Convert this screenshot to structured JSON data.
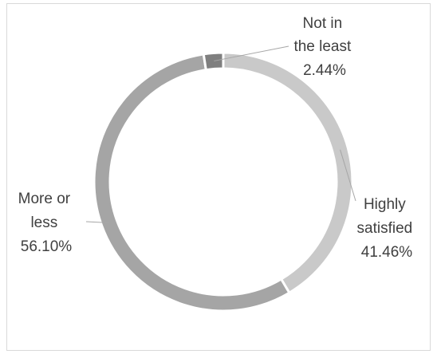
{
  "chart_data": {
    "type": "pie",
    "variant": "doughnut",
    "title": "",
    "slices": [
      {
        "label_lines": [
          "Highly",
          "satisfied"
        ],
        "value_label": "41.46%",
        "value": 41.46,
        "color": "#c9c9c9"
      },
      {
        "label_lines": [
          "More or",
          "less"
        ],
        "value_label": "56.10%",
        "value": 56.1,
        "color": "#a5a5a5"
      },
      {
        "label_lines": [
          "Not in",
          "the least"
        ],
        "value_label": "2.44%",
        "value": 2.44,
        "color": "#7f7f7f"
      }
    ],
    "legend": "none",
    "data_labels": "outside with leader lines"
  }
}
